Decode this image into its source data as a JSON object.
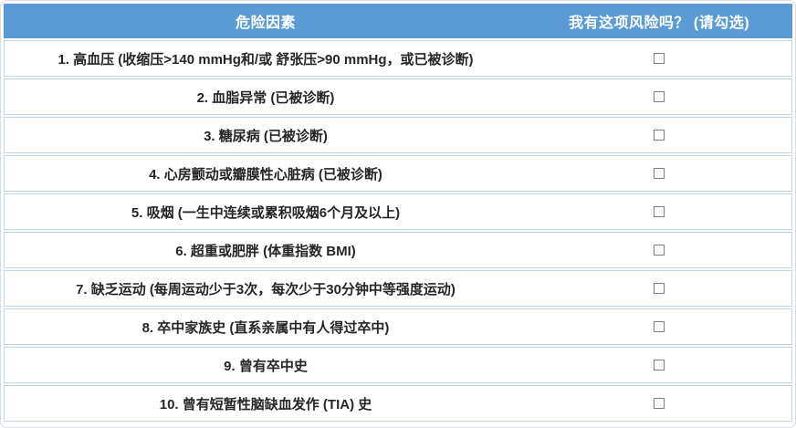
{
  "table": {
    "header": {
      "risk_factor_column": "危险因素",
      "check_column": "我有这项风险吗？ (请勾选)"
    },
    "rows": [
      {
        "label": "1. 高血压 (收缩压>140 mmHg和/或 舒张压>90 mmHg，或已被诊断)",
        "checked": false
      },
      {
        "label": "2. 血脂异常 (已被诊断)",
        "checked": false
      },
      {
        "label": "3. 糖尿病 (已被诊断)",
        "checked": false
      },
      {
        "label": "4. 心房颤动或瓣膜性心脏病 (已被诊断)",
        "checked": false
      },
      {
        "label": "5. 吸烟 (一生中连续或累积吸烟6个月及以上)",
        "checked": false
      },
      {
        "label": "6. 超重或肥胖 (体重指数 BMI)",
        "checked": false
      },
      {
        "label": "7. 缺乏运动 (每周运动少于3次，每次少于30分钟中等强度运动)",
        "checked": false
      },
      {
        "label": "8. 卒中家族史 (直系亲属中有人得过卒中)",
        "checked": false
      },
      {
        "label": "9. 曾有卒中史",
        "checked": false
      },
      {
        "label": "10. 曾有短暂性脑缺血发作 (TIA) 史",
        "checked": false
      }
    ],
    "colors": {
      "header_bg": "#5B9BD5",
      "header_text": "#FFFFFF",
      "border": "#BDD7EE",
      "row_text": "#262626",
      "checkbox_border": "#808080"
    }
  }
}
